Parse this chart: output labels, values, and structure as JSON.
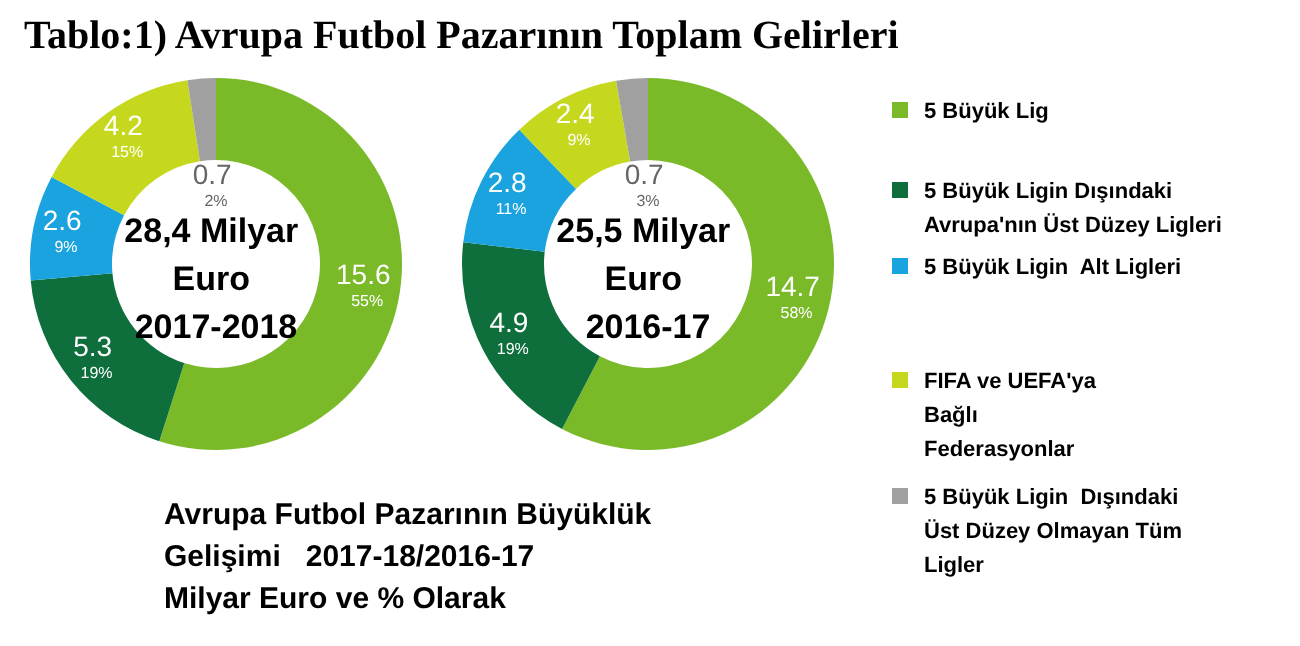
{
  "chart_data": [
    {
      "type": "donut",
      "title": "Tablo:1) Avrupa Futbol Pazarının Toplam Gelirleri",
      "categories": [
        null,
        null,
        null,
        null,
        null
      ],
      "values": [
        15.6,
        5.3,
        2.6,
        4.2,
        0.7
      ],
      "value_labels": [
        "15.6\n55%",
        "5.3\n19%",
        "2.6\n9%",
        "4.2\n15%",
        "0.7\n2%"
      ],
      "colors": [
        "#7aba28",
        "#0e6e3c",
        "#1aa3de",
        "#c6d81e",
        "#a0a0a0"
      ],
      "subtitle": "28,4 Milyar\nEuro\n2017-2018",
      "annotations": [
        "Avrupa Futbol Pazarının Büyüklük\nGelişimi   2017-18/2016-17\nMilyar Euro ve % Olarak"
      ]
    },
    {
      "type": "donut",
      "categories": [
        "5 Büyük Lig",
        "5 Büyük Ligin Dışındaki Avrupa'nın Üst Düzey Ligleri",
        "5 Büyük Ligin  Alt Ligleri",
        "FIFA ve UEFA'ya Bağlı Federasyonlar",
        "5 Büyük Ligin  Dışındaki Üst Düzey Olmayan Tüm Ligler"
      ],
      "values": [
        14.7,
        4.9,
        2.8,
        2.4,
        0.7
      ],
      "value_labels": [
        "14.7\n58%",
        "4.9\n19%",
        "2.8\n11%",
        "2.4\n9%",
        "0.7\n3%"
      ],
      "colors": [
        "#7aba28",
        "#0e6e3c",
        "#1aa3de",
        "#c6d81e",
        "#a0a0a0"
      ],
      "subtitle": "25,5 Milyar\nEuro\n2016-17",
      "legend": "right"
    }
  ]
}
